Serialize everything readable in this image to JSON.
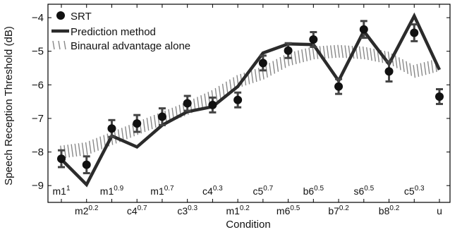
{
  "chart_data": {
    "type": "line",
    "xlabel": "Condition",
    "ylabel": "Speech Reception Threshold (dB)",
    "ylim": [
      -9.5,
      -3.6
    ],
    "yticks": [
      -9,
      -8,
      -7,
      -6,
      -5,
      -4
    ],
    "ytick_labels": [
      "−9",
      "−8",
      "−7",
      "−6",
      "−5",
      "−4"
    ],
    "grid": false,
    "legend_position": "top-left",
    "categories": [
      {
        "base": "m1",
        "exp": "1",
        "row": "upper"
      },
      {
        "base": "m2",
        "exp": "0.2",
        "row": "lower"
      },
      {
        "base": "m1",
        "exp": "0.9",
        "row": "upper"
      },
      {
        "base": "c4",
        "exp": "0.7",
        "row": "lower"
      },
      {
        "base": "m1",
        "exp": "0.7",
        "row": "upper"
      },
      {
        "base": "c3",
        "exp": "0.3",
        "row": "lower"
      },
      {
        "base": "c4",
        "exp": "0.3",
        "row": "upper"
      },
      {
        "base": "m1",
        "exp": "0.2",
        "row": "lower"
      },
      {
        "base": "c5",
        "exp": "0.7",
        "row": "upper"
      },
      {
        "base": "m6",
        "exp": "0.5",
        "row": "lower"
      },
      {
        "base": "b6",
        "exp": "0.5",
        "row": "upper"
      },
      {
        "base": "b7",
        "exp": "0.2",
        "row": "lower"
      },
      {
        "base": "s6",
        "exp": "0.5",
        "row": "upper"
      },
      {
        "base": "b8",
        "exp": "0.2",
        "row": "lower"
      },
      {
        "base": "c5",
        "exp": "0.3",
        "row": "upper"
      },
      {
        "base": "u",
        "exp": "",
        "row": "lower"
      }
    ],
    "series": [
      {
        "name": "SRT",
        "style": "markers-errorbars",
        "values": [
          -8.2,
          -8.38,
          -7.3,
          -7.15,
          -6.95,
          -6.55,
          -6.6,
          -6.45,
          -5.35,
          -4.98,
          -4.65,
          -6.05,
          -4.35,
          -5.6,
          -4.45,
          -6.35
        ],
        "error": [
          0.25,
          0.25,
          0.25,
          0.25,
          0.25,
          0.22,
          0.22,
          0.22,
          0.22,
          0.22,
          0.22,
          0.22,
          0.25,
          0.3,
          0.25,
          0.22
        ]
      },
      {
        "name": "Prediction method",
        "style": "thick-line",
        "values": [
          -8.22,
          -8.97,
          -7.52,
          -7.85,
          -7.2,
          -6.8,
          -6.65,
          -6.05,
          -5.05,
          -4.78,
          -4.8,
          -5.88,
          -4.4,
          -5.38,
          -3.95,
          -5.55
        ]
      },
      {
        "name": "Binaural advantage alone",
        "style": "hatched-band",
        "values": [
          -8.0,
          -7.9,
          -7.6,
          -7.3,
          -7.0,
          -6.7,
          -6.35,
          -5.9,
          -5.65,
          -5.25,
          -5.05,
          -5.0,
          -5.05,
          -5.2,
          -5.6,
          -5.4
        ]
      }
    ],
    "colors": {
      "srt": "#111111",
      "prediction": "#2b2b2b",
      "band": "#888888",
      "axis": "#000000"
    }
  }
}
